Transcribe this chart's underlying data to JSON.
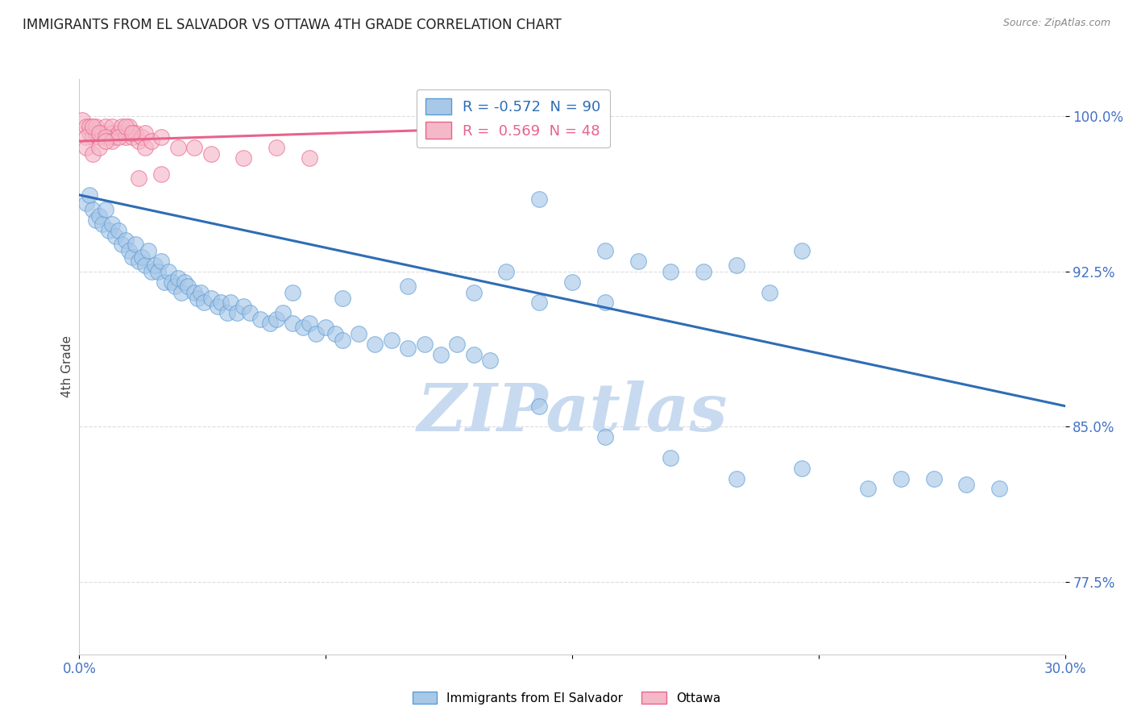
{
  "title": "IMMIGRANTS FROM EL SALVADOR VS OTTAWA 4TH GRADE CORRELATION CHART",
  "source": "Source: ZipAtlas.com",
  "ylabel": "4th Grade",
  "y_ticks": [
    77.5,
    85.0,
    92.5,
    100.0
  ],
  "y_tick_labels": [
    "77.5%",
    "85.0%",
    "92.5%",
    "100.0%"
  ],
  "x_min": 0.0,
  "x_max": 30.0,
  "y_min": 74.0,
  "y_max": 101.8,
  "blue_label": "Immigrants from El Salvador",
  "pink_label": "Ottawa",
  "blue_R": -0.572,
  "blue_N": 90,
  "pink_R": 0.569,
  "pink_N": 48,
  "blue_color": "#a8c8e8",
  "blue_edge_color": "#5b9bd5",
  "blue_line_color": "#2e6db4",
  "pink_color": "#f5b8c8",
  "pink_edge_color": "#e8638c",
  "pink_line_color": "#e8638c",
  "blue_scatter": [
    [
      0.2,
      95.8
    ],
    [
      0.3,
      96.2
    ],
    [
      0.4,
      95.5
    ],
    [
      0.5,
      95.0
    ],
    [
      0.6,
      95.2
    ],
    [
      0.7,
      94.8
    ],
    [
      0.8,
      95.5
    ],
    [
      0.9,
      94.5
    ],
    [
      1.0,
      94.8
    ],
    [
      1.1,
      94.2
    ],
    [
      1.2,
      94.5
    ],
    [
      1.3,
      93.8
    ],
    [
      1.4,
      94.0
    ],
    [
      1.5,
      93.5
    ],
    [
      1.6,
      93.2
    ],
    [
      1.7,
      93.8
    ],
    [
      1.8,
      93.0
    ],
    [
      1.9,
      93.2
    ],
    [
      2.0,
      92.8
    ],
    [
      2.1,
      93.5
    ],
    [
      2.2,
      92.5
    ],
    [
      2.3,
      92.8
    ],
    [
      2.4,
      92.5
    ],
    [
      2.5,
      93.0
    ],
    [
      2.6,
      92.0
    ],
    [
      2.7,
      92.5
    ],
    [
      2.8,
      92.0
    ],
    [
      2.9,
      91.8
    ],
    [
      3.0,
      92.2
    ],
    [
      3.1,
      91.5
    ],
    [
      3.2,
      92.0
    ],
    [
      3.3,
      91.8
    ],
    [
      3.5,
      91.5
    ],
    [
      3.6,
      91.2
    ],
    [
      3.7,
      91.5
    ],
    [
      3.8,
      91.0
    ],
    [
      4.0,
      91.2
    ],
    [
      4.2,
      90.8
    ],
    [
      4.3,
      91.0
    ],
    [
      4.5,
      90.5
    ],
    [
      4.6,
      91.0
    ],
    [
      4.8,
      90.5
    ],
    [
      5.0,
      90.8
    ],
    [
      5.2,
      90.5
    ],
    [
      5.5,
      90.2
    ],
    [
      5.8,
      90.0
    ],
    [
      6.0,
      90.2
    ],
    [
      6.2,
      90.5
    ],
    [
      6.5,
      90.0
    ],
    [
      6.8,
      89.8
    ],
    [
      7.0,
      90.0
    ],
    [
      7.2,
      89.5
    ],
    [
      7.5,
      89.8
    ],
    [
      7.8,
      89.5
    ],
    [
      8.0,
      89.2
    ],
    [
      8.5,
      89.5
    ],
    [
      9.0,
      89.0
    ],
    [
      9.5,
      89.2
    ],
    [
      10.0,
      88.8
    ],
    [
      10.5,
      89.0
    ],
    [
      11.0,
      88.5
    ],
    [
      11.5,
      89.0
    ],
    [
      12.0,
      88.5
    ],
    [
      12.5,
      88.2
    ],
    [
      13.0,
      92.5
    ],
    [
      14.0,
      96.0
    ],
    [
      15.0,
      92.0
    ],
    [
      16.0,
      93.5
    ],
    [
      17.0,
      93.0
    ],
    [
      18.0,
      92.5
    ],
    [
      19.0,
      92.5
    ],
    [
      20.0,
      92.8
    ],
    [
      21.0,
      91.5
    ],
    [
      22.0,
      93.5
    ],
    [
      6.5,
      91.5
    ],
    [
      8.0,
      91.2
    ],
    [
      10.0,
      91.8
    ],
    [
      12.0,
      91.5
    ],
    [
      14.0,
      91.0
    ],
    [
      16.0,
      91.0
    ],
    [
      18.0,
      83.5
    ],
    [
      20.0,
      82.5
    ],
    [
      22.0,
      83.0
    ],
    [
      24.0,
      82.0
    ],
    [
      25.0,
      82.5
    ],
    [
      26.0,
      82.5
    ],
    [
      27.0,
      82.2
    ],
    [
      28.0,
      82.0
    ],
    [
      14.0,
      86.0
    ],
    [
      16.0,
      84.5
    ]
  ],
  "pink_scatter": [
    [
      0.1,
      99.8
    ],
    [
      0.2,
      99.5
    ],
    [
      0.3,
      99.2
    ],
    [
      0.3,
      99.5
    ],
    [
      0.4,
      99.0
    ],
    [
      0.5,
      99.2
    ],
    [
      0.5,
      99.5
    ],
    [
      0.6,
      99.0
    ],
    [
      0.7,
      99.2
    ],
    [
      0.8,
      99.5
    ],
    [
      0.9,
      99.0
    ],
    [
      1.0,
      99.2
    ],
    [
      1.0,
      99.5
    ],
    [
      1.1,
      99.0
    ],
    [
      1.2,
      99.2
    ],
    [
      1.3,
      99.5
    ],
    [
      1.4,
      99.0
    ],
    [
      1.5,
      99.2
    ],
    [
      1.5,
      99.5
    ],
    [
      1.6,
      99.0
    ],
    [
      1.7,
      99.2
    ],
    [
      1.8,
      98.8
    ],
    [
      1.9,
      99.0
    ],
    [
      2.0,
      99.2
    ],
    [
      0.2,
      99.0
    ],
    [
      0.4,
      99.5
    ],
    [
      0.6,
      99.2
    ],
    [
      0.8,
      99.0
    ],
    [
      1.0,
      98.8
    ],
    [
      1.2,
      99.0
    ],
    [
      1.4,
      99.5
    ],
    [
      1.6,
      99.2
    ],
    [
      2.0,
      98.5
    ],
    [
      2.2,
      98.8
    ],
    [
      2.5,
      99.0
    ],
    [
      3.0,
      98.5
    ],
    [
      3.5,
      98.5
    ],
    [
      4.0,
      98.2
    ],
    [
      1.8,
      97.0
    ],
    [
      2.5,
      97.2
    ],
    [
      13.0,
      99.5
    ],
    [
      5.0,
      98.0
    ],
    [
      6.0,
      98.5
    ],
    [
      7.0,
      98.0
    ],
    [
      0.2,
      98.5
    ],
    [
      0.4,
      98.2
    ],
    [
      0.6,
      98.5
    ],
    [
      0.8,
      98.8
    ]
  ],
  "blue_trend_x": [
    0.0,
    30.0
  ],
  "blue_trend_y": [
    96.2,
    86.0
  ],
  "pink_trend_x": [
    0.0,
    14.0
  ],
  "pink_trend_y": [
    98.8,
    99.5
  ],
  "watermark": "ZIPatlas",
  "watermark_color": "#c8daf0",
  "background_color": "#ffffff",
  "grid_color": "#dddddd"
}
